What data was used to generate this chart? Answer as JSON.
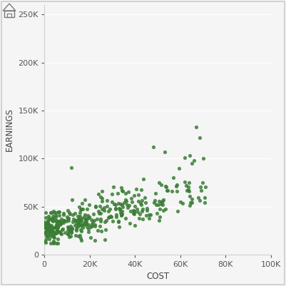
{
  "title": "",
  "xlabel": "COST",
  "ylabel": "EARNINGS",
  "xlim": [
    0,
    100000
  ],
  "ylim": [
    0,
    260000
  ],
  "xticks": [
    0,
    20000,
    40000,
    60000,
    80000,
    100000
  ],
  "yticks": [
    0,
    50000,
    100000,
    150000,
    200000,
    250000
  ],
  "dot_color": "#3a7d34",
  "dot_size": 14,
  "dot_alpha": 0.85,
  "bg_color": "#f5f5f5",
  "plot_bg_color": "#f5f5f5",
  "grid_color": "#ffffff",
  "border_color": "#d0d0d0",
  "seed": 42,
  "n_points": 380
}
